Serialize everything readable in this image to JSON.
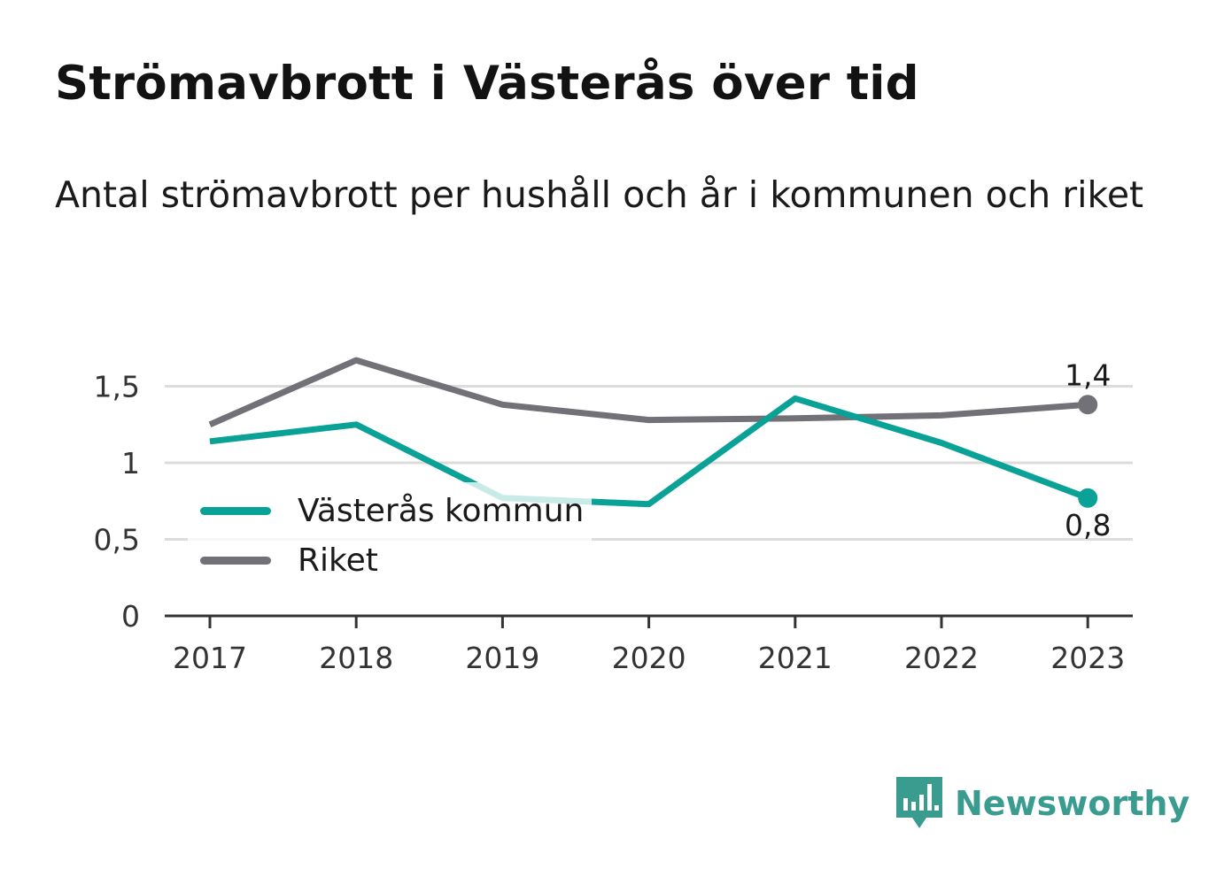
{
  "title": "Strömavbrott i Västerås över tid",
  "subtitle": "Antal strömavbrott per hushåll och år i kommunen och riket",
  "colors": {
    "teal": "#0aa296",
    "grey": "#727178",
    "grid": "#dcdcdc",
    "axis": "#333333",
    "brand": "#3a9b8f"
  },
  "brand": {
    "name": "Newsworthy",
    "icon": "newsworthy-logo-icon"
  },
  "chart_data": {
    "type": "line",
    "title": "Strömavbrott i Västerås över tid",
    "subtitle": "Antal strömavbrott per hushåll och år i kommunen och riket",
    "x": [
      "2017",
      "2018",
      "2019",
      "2020",
      "2021",
      "2022",
      "2023"
    ],
    "ylim": [
      0,
      1.75
    ],
    "yticks": [
      0,
      0.5,
      1,
      1.5
    ],
    "ytick_labels": [
      "0",
      "0,5",
      "1",
      "1,5"
    ],
    "grid": "horizontal",
    "legend": "bottom-left",
    "series": [
      {
        "name": "Västerås kommun",
        "color": "#0aa296",
        "values": [
          1.14,
          1.25,
          0.77,
          0.73,
          1.42,
          1.13,
          0.77
        ],
        "end_label": "0,8",
        "end_label_position": "below"
      },
      {
        "name": "Riket",
        "color": "#727178",
        "values": [
          1.25,
          1.67,
          1.38,
          1.28,
          1.29,
          1.31,
          1.38
        ],
        "end_label": "1,4",
        "end_label_position": "above"
      }
    ]
  }
}
